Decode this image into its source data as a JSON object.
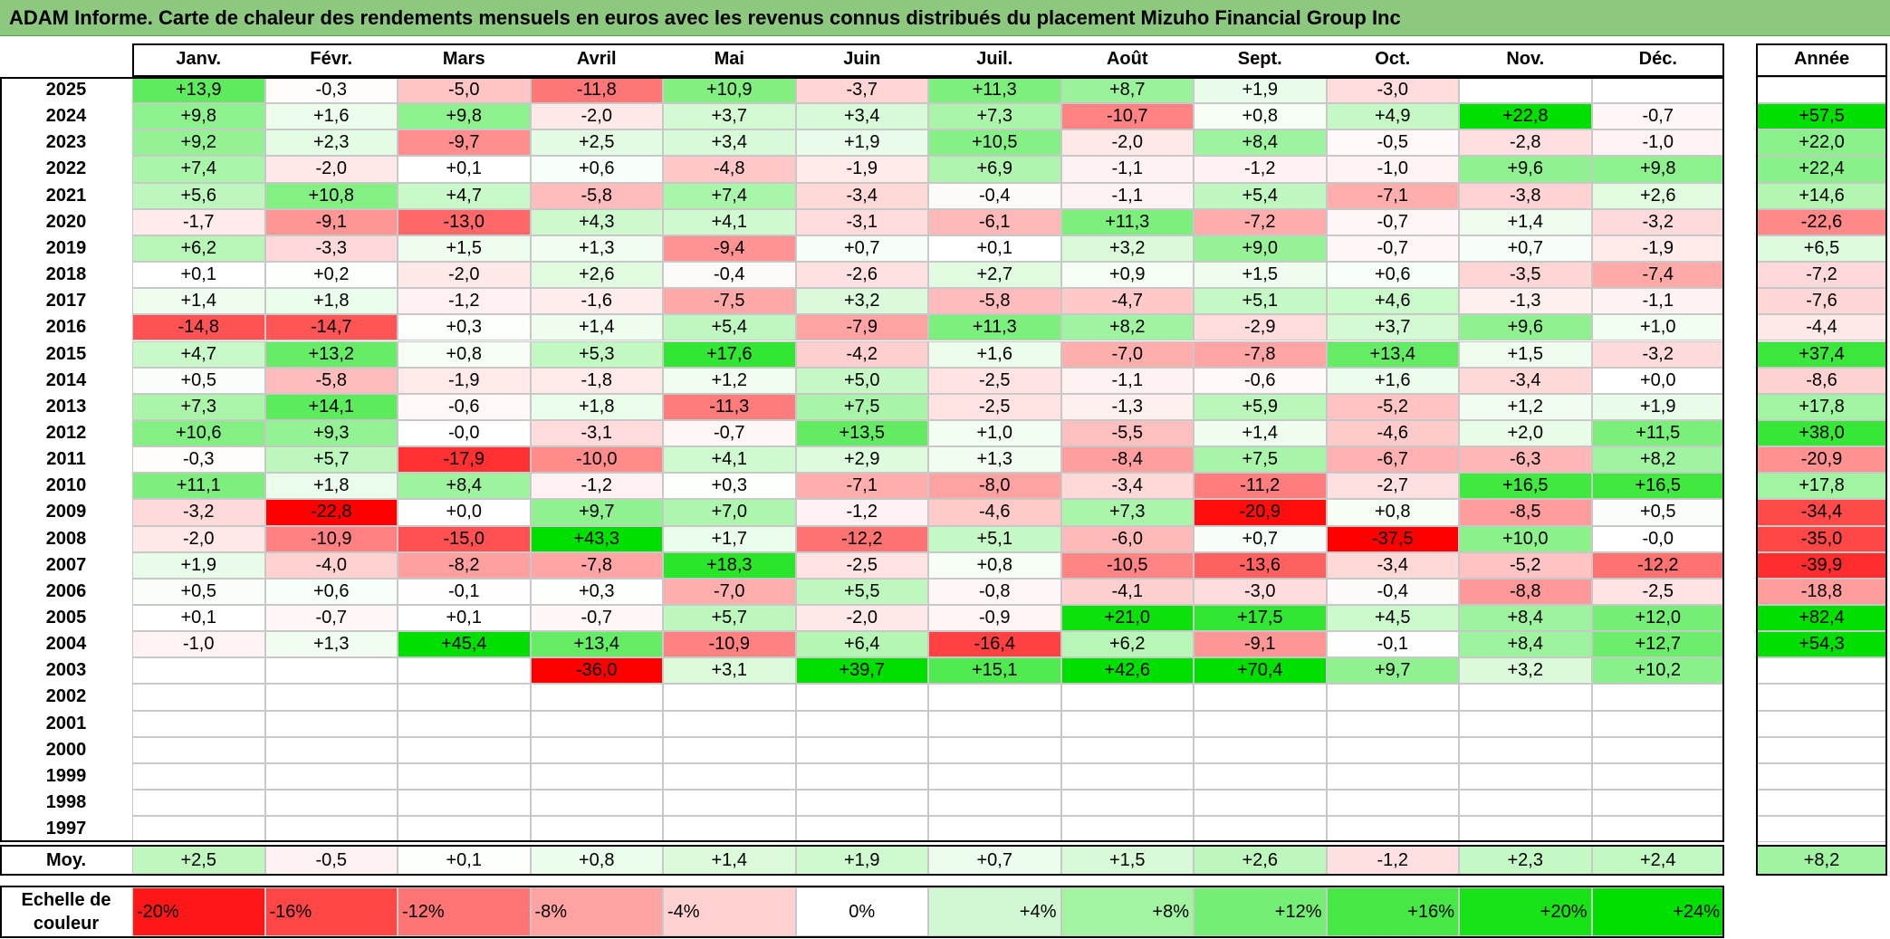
{
  "title": "ADAM Informe. Carte de chaleur des rendements mensuels en euros avec les revenus connus distribués du placement Mizuho Financial Group Inc",
  "chart_data": {
    "type": "heatmap",
    "months": [
      "Janv.",
      "Févr.",
      "Mars",
      "Avril",
      "Mai",
      "Juin",
      "Juil.",
      "Août",
      "Sept.",
      "Oct.",
      "Nov.",
      "Déc."
    ],
    "year_col_label": "Année",
    "rows": [
      {
        "year": "2025",
        "m": [
          "+13,9",
          "-0,3",
          "-5,0",
          "-11,8",
          "+10,9",
          "-3,7",
          "+11,3",
          "+8,7",
          "+1,9",
          "-3,0",
          "",
          ""
        ],
        "y": ""
      },
      {
        "year": "2024",
        "m": [
          "+9,8",
          "+1,6",
          "+9,8",
          "-2,0",
          "+3,7",
          "+3,4",
          "+7,3",
          "-10,7",
          "+0,8",
          "+4,9",
          "+22,8",
          "-0,7"
        ],
        "y": "+57,5"
      },
      {
        "year": "2023",
        "m": [
          "+9,2",
          "+2,3",
          "-9,7",
          "+2,5",
          "+3,4",
          "+1,9",
          "+10,5",
          "-2,0",
          "+8,4",
          "-0,5",
          "-2,8",
          "-1,0"
        ],
        "y": "+22,0"
      },
      {
        "year": "2022",
        "m": [
          "+7,4",
          "-2,0",
          "+0,1",
          "+0,6",
          "-4,8",
          "-1,9",
          "+6,9",
          "-1,1",
          "-1,2",
          "-1,0",
          "+9,6",
          "+9,8"
        ],
        "y": "+22,4"
      },
      {
        "year": "2021",
        "m": [
          "+5,6",
          "+10,8",
          "+4,7",
          "-5,8",
          "+7,4",
          "-3,4",
          "-0,4",
          "-1,1",
          "+5,4",
          "-7,1",
          "-3,8",
          "+2,6"
        ],
        "y": "+14,6"
      },
      {
        "year": "2020",
        "m": [
          "-1,7",
          "-9,1",
          "-13,0",
          "+4,3",
          "+4,1",
          "-3,1",
          "-6,1",
          "+11,3",
          "-7,2",
          "-0,7",
          "+1,4",
          "-3,2"
        ],
        "y": "-22,6"
      },
      {
        "year": "2019",
        "m": [
          "+6,2",
          "-3,3",
          "+1,5",
          "+1,3",
          "-9,4",
          "+0,7",
          "+0,1",
          "+3,2",
          "+9,0",
          "-0,7",
          "+0,7",
          "-1,9"
        ],
        "y": "+6,5"
      },
      {
        "year": "2018",
        "m": [
          "+0,1",
          "+0,2",
          "-2,0",
          "+2,6",
          "-0,4",
          "-2,6",
          "+2,7",
          "+0,9",
          "+1,5",
          "+0,6",
          "-3,5",
          "-7,4"
        ],
        "y": "-7,2"
      },
      {
        "year": "2017",
        "m": [
          "+1,4",
          "+1,8",
          "-1,2",
          "-1,6",
          "-7,5",
          "+3,2",
          "-5,8",
          "-4,7",
          "+5,1",
          "+4,6",
          "-1,3",
          "-1,1"
        ],
        "y": "-7,6"
      },
      {
        "year": "2016",
        "m": [
          "-14,8",
          "-14,7",
          "+0,3",
          "+1,4",
          "+5,4",
          "-7,9",
          "+11,3",
          "+8,2",
          "-2,9",
          "+3,7",
          "+9,6",
          "+1,0"
        ],
        "y": "-4,4"
      },
      {
        "year": "2015",
        "m": [
          "+4,7",
          "+13,2",
          "+0,8",
          "+5,3",
          "+17,6",
          "-4,2",
          "+1,6",
          "-7,0",
          "-7,8",
          "+13,4",
          "+1,5",
          "-3,2"
        ],
        "y": "+37,4"
      },
      {
        "year": "2014",
        "m": [
          "+0,5",
          "-5,8",
          "-1,9",
          "-1,8",
          "+1,2",
          "+5,0",
          "-2,5",
          "-1,1",
          "-0,6",
          "+1,6",
          "-3,4",
          "+0,0"
        ],
        "y": "-8,6"
      },
      {
        "year": "2013",
        "m": [
          "+7,3",
          "+14,1",
          "-0,6",
          "+1,8",
          "-11,3",
          "+7,5",
          "-2,5",
          "-1,3",
          "+5,9",
          "-5,2",
          "+1,2",
          "+1,9"
        ],
        "y": "+17,8"
      },
      {
        "year": "2012",
        "m": [
          "+10,6",
          "+9,3",
          "-0,0",
          "-3,1",
          "-0,7",
          "+13,5",
          "+1,0",
          "-5,5",
          "+1,4",
          "-4,6",
          "+2,0",
          "+11,5"
        ],
        "y": "+38,0"
      },
      {
        "year": "2011",
        "m": [
          "-0,3",
          "+5,7",
          "-17,9",
          "-10,0",
          "+4,1",
          "+2,9",
          "+1,3",
          "-8,4",
          "+7,5",
          "-6,7",
          "-6,3",
          "+8,2"
        ],
        "y": "-20,9"
      },
      {
        "year": "2010",
        "m": [
          "+11,1",
          "+1,8",
          "+8,4",
          "-1,2",
          "+0,3",
          "-7,1",
          "-8,0",
          "-3,4",
          "-11,2",
          "-2,7",
          "+16,5",
          "+16,5"
        ],
        "y": "+17,8"
      },
      {
        "year": "2009",
        "m": [
          "-3,2",
          "-22,8",
          "+0,0",
          "+9,7",
          "+7,0",
          "-1,2",
          "-4,6",
          "+7,3",
          "-20,9",
          "+0,8",
          "-8,5",
          "+0,5"
        ],
        "y": "-34,4"
      },
      {
        "year": "2008",
        "m": [
          "-2,0",
          "-10,9",
          "-15,0",
          "+43,3",
          "+1,7",
          "-12,2",
          "+5,1",
          "-6,0",
          "+0,7",
          "-37,5",
          "+10,0",
          "-0,0"
        ],
        "y": "-35,0"
      },
      {
        "year": "2007",
        "m": [
          "+1,9",
          "-4,0",
          "-8,2",
          "-7,8",
          "+18,3",
          "-2,5",
          "+0,8",
          "-10,5",
          "-13,6",
          "-3,4",
          "-5,2",
          "-12,2"
        ],
        "y": "-39,9"
      },
      {
        "year": "2006",
        "m": [
          "+0,5",
          "+0,6",
          "-0,1",
          "+0,3",
          "-7,0",
          "+5,5",
          "-0,8",
          "-4,1",
          "-3,0",
          "-0,4",
          "-8,8",
          "-2,5"
        ],
        "y": "-18,8"
      },
      {
        "year": "2005",
        "m": [
          "+0,1",
          "-0,7",
          "+0,1",
          "-0,7",
          "+5,7",
          "-2,0",
          "-0,9",
          "+21,0",
          "+17,5",
          "+4,5",
          "+8,4",
          "+12,0"
        ],
        "y": "+82,4"
      },
      {
        "year": "2004",
        "m": [
          "-1,0",
          "+1,3",
          "+45,4",
          "+13,4",
          "-10,9",
          "+6,4",
          "-16,4",
          "+6,2",
          "-9,1",
          "-0,1",
          "+8,4",
          "+12,7"
        ],
        "y": "+54,3"
      },
      {
        "year": "2003",
        "m": [
          "",
          "",
          "",
          "-36,0",
          "+3,1",
          "+39,7",
          "+15,1",
          "+42,6",
          "+70,4",
          "+9,7",
          "+3,2",
          "+10,2"
        ],
        "y": ""
      },
      {
        "year": "2002",
        "m": [
          "",
          "",
          "",
          "",
          "",
          "",
          "",
          "",
          "",
          "",
          "",
          ""
        ],
        "y": ""
      },
      {
        "year": "2001",
        "m": [
          "",
          "",
          "",
          "",
          "",
          "",
          "",
          "",
          "",
          "",
          "",
          ""
        ],
        "y": ""
      },
      {
        "year": "2000",
        "m": [
          "",
          "",
          "",
          "",
          "",
          "",
          "",
          "",
          "",
          "",
          "",
          ""
        ],
        "y": ""
      },
      {
        "year": "1999",
        "m": [
          "",
          "",
          "",
          "",
          "",
          "",
          "",
          "",
          "",
          "",
          "",
          ""
        ],
        "y": ""
      },
      {
        "year": "1998",
        "m": [
          "",
          "",
          "",
          "",
          "",
          "",
          "",
          "",
          "",
          "",
          "",
          ""
        ],
        "y": ""
      },
      {
        "year": "1997",
        "m": [
          "",
          "",
          "",
          "",
          "",
          "",
          "",
          "",
          "",
          "",
          "",
          ""
        ],
        "y": ""
      }
    ],
    "avg_label": "Moy.",
    "avg": [
      "+2,5",
      "-0,5",
      "+0,1",
      "+0,8",
      "+1,4",
      "+1,9",
      "+0,7",
      "+1,5",
      "+2,6",
      "-1,2",
      "+2,3",
      "+2,4"
    ],
    "avg_year": "+8,2",
    "scale_label": "Echelle de couleur",
    "scale": [
      {
        "label": "-20%",
        "value": -20
      },
      {
        "label": "-16%",
        "value": -16
      },
      {
        "label": "-12%",
        "value": -12
      },
      {
        "label": "-8%",
        "value": -8
      },
      {
        "label": "-4%",
        "value": -4
      },
      {
        "label": "0%",
        "value": 0
      },
      {
        "label": "+4%",
        "value": 4
      },
      {
        "label": "+8%",
        "value": 8
      },
      {
        "label": "+12%",
        "value": 12
      },
      {
        "label": "+16%",
        "value": 16
      },
      {
        "label": "+20%",
        "value": 20
      },
      {
        "label": "+24%",
        "value": 24
      }
    ],
    "colors": {
      "neg_max": "#ff0000",
      "zero": "#ffffff",
      "pos_max": "#00e000"
    }
  }
}
